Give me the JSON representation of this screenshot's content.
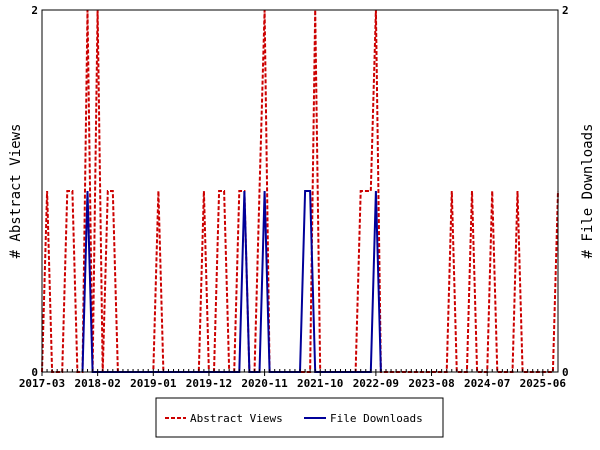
{
  "chart_data": {
    "type": "line",
    "x_tick_labels": [
      "2017-03",
      "2018-02",
      "2019-01",
      "2019-12",
      "2020-11",
      "2021-10",
      "2022-09",
      "2023-08",
      "2024-07",
      "2025-06"
    ],
    "x_start": "2017-03",
    "x_end": "2025-09",
    "ylabel_left": "# Abstract Views",
    "ylabel_right": "# File Downloads",
    "y_ticks_left": [
      "0",
      "2"
    ],
    "y_ticks_right": [
      "0",
      "2"
    ],
    "ylim": [
      0,
      2
    ],
    "grid": false,
    "legend_position": "bottom",
    "series": [
      {
        "name": "Abstract Views",
        "color": "#cc0000",
        "style": "dashed",
        "points": [
          [
            "2017-03",
            0
          ],
          [
            "2017-04",
            1
          ],
          [
            "2017-05",
            0
          ],
          [
            "2017-07",
            0
          ],
          [
            "2017-08",
            1
          ],
          [
            "2017-09",
            1
          ],
          [
            "2017-10",
            0
          ],
          [
            "2017-11",
            0
          ],
          [
            "2017-12",
            2
          ],
          [
            "2018-01",
            0
          ],
          [
            "2018-02",
            2
          ],
          [
            "2018-03",
            0
          ],
          [
            "2018-04",
            1
          ],
          [
            "2018-05",
            1
          ],
          [
            "2018-06",
            0
          ],
          [
            "2019-01",
            0
          ],
          [
            "2019-02",
            1
          ],
          [
            "2019-03",
            0
          ],
          [
            "2019-10",
            0
          ],
          [
            "2019-11",
            1
          ],
          [
            "2019-12",
            0
          ],
          [
            "2020-01",
            0
          ],
          [
            "2020-02",
            1
          ],
          [
            "2020-03",
            1
          ],
          [
            "2020-04",
            0
          ],
          [
            "2020-05",
            0
          ],
          [
            "2020-06",
            1
          ],
          [
            "2020-07",
            1
          ],
          [
            "2020-08",
            0
          ],
          [
            "2020-09",
            0
          ],
          [
            "2020-10",
            1
          ],
          [
            "2020-11",
            2
          ],
          [
            "2020-12",
            0
          ],
          [
            "2021-08",
            0
          ],
          [
            "2021-09",
            2
          ],
          [
            "2021-10",
            0
          ],
          [
            "2022-05",
            0
          ],
          [
            "2022-06",
            1
          ],
          [
            "2022-07",
            1
          ],
          [
            "2022-08",
            1
          ],
          [
            "2022-09",
            2
          ],
          [
            "2022-10",
            0
          ],
          [
            "2023-11",
            0
          ],
          [
            "2023-12",
            1
          ],
          [
            "2024-01",
            0
          ],
          [
            "2024-03",
            0
          ],
          [
            "2024-04",
            1
          ],
          [
            "2024-05",
            0
          ],
          [
            "2024-07",
            0
          ],
          [
            "2024-08",
            1
          ],
          [
            "2024-09",
            0
          ],
          [
            "2024-12",
            0
          ],
          [
            "2025-01",
            1
          ],
          [
            "2025-02",
            0
          ],
          [
            "2025-08",
            0
          ],
          [
            "2025-09",
            1
          ]
        ]
      },
      {
        "name": "File Downloads",
        "color": "#000099",
        "style": "solid",
        "points": [
          [
            "2017-11",
            0
          ],
          [
            "2017-12",
            1
          ],
          [
            "2018-01",
            0
          ],
          [
            "2020-06",
            0
          ],
          [
            "2020-07",
            1
          ],
          [
            "2020-08",
            0
          ],
          [
            "2020-10",
            0
          ],
          [
            "2020-11",
            1
          ],
          [
            "2020-12",
            0
          ],
          [
            "2021-06",
            0
          ],
          [
            "2021-07",
            1
          ],
          [
            "2021-08",
            1
          ],
          [
            "2021-09",
            0
          ],
          [
            "2022-08",
            0
          ],
          [
            "2022-09",
            1
          ],
          [
            "2022-10",
            0
          ]
        ]
      }
    ]
  }
}
